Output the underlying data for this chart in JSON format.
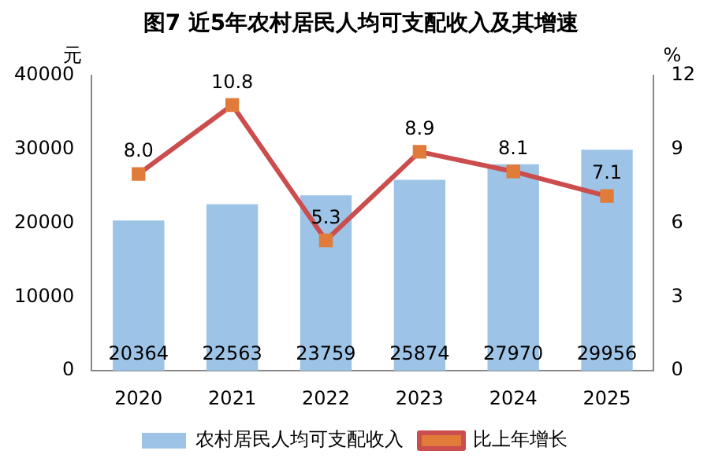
{
  "chart_data": {
    "type": "bar",
    "title": "图7  近5年农村居民人均可支配收入及其增速",
    "ylabel": "元",
    "y2label": "%",
    "categories": [
      "2020",
      "2021",
      "2022",
      "2023",
      "2024",
      "2025"
    ],
    "series": [
      {
        "name": "农村居民人均可支配收入",
        "color": "#9dc3e6",
        "values": [
          20364,
          22563,
          23759,
          25874,
          27970,
          29956
        ],
        "value_labels": [
          "20364",
          "22563",
          "23759",
          "25874",
          "27970",
          "29956"
        ]
      },
      {
        "name": "比上年增长",
        "type": "line",
        "axis": "y2",
        "color": "#cc4d4d",
        "marker": "square",
        "values": [
          8.0,
          10.8,
          5.3,
          8.9,
          8.1,
          7.1
        ],
        "value_labels": [
          "8.0",
          "10.8",
          "5.3",
          "8.9",
          "8.1",
          "7.1"
        ]
      }
    ],
    "ylim": [
      0,
      40000
    ],
    "yticks": [
      0,
      10000,
      20000,
      30000,
      40000
    ],
    "y2lim": [
      0,
      12
    ],
    "y2ticks": [
      0,
      3,
      6,
      9,
      12
    ],
    "grid": false,
    "legend": "bottom"
  }
}
